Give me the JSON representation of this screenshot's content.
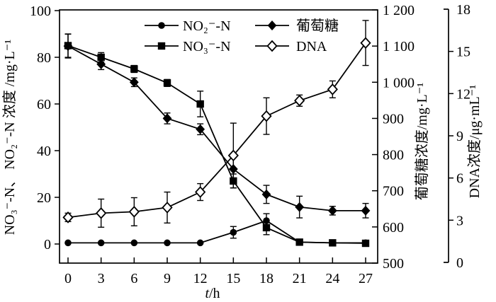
{
  "figure": {
    "background": "#ffffff",
    "foreground": "#000000"
  },
  "chart_data": {
    "type": "line",
    "title": "",
    "x": [
      0,
      3,
      6,
      9,
      12,
      15,
      18,
      21,
      24,
      27
    ],
    "xlabel": "t/h",
    "x_tick_labels": [
      "0",
      "3",
      "6",
      "9",
      "12",
      "15",
      "18",
      "21",
      "24",
      "27"
    ],
    "grid": false,
    "legend_position": "top-center",
    "axes": {
      "left": {
        "title": "NO₃⁻-N、 NO₂⁻-N 浓度 /mg·L⁻¹",
        "tick_labels": [
          "0",
          "20",
          "40",
          "60",
          "80",
          "100"
        ],
        "tick_values": [
          0,
          20,
          40,
          60,
          80,
          100
        ],
        "range": [
          0,
          100
        ]
      },
      "right_glucose": {
        "title": "葡萄糖浓度/mg·L⁻¹",
        "tick_labels": [
          "500",
          "600",
          "700",
          "800",
          "900",
          "1 000",
          "1 100",
          "1 200"
        ],
        "tick_values": [
          500,
          600,
          700,
          800,
          900,
          1000,
          1100,
          1200
        ],
        "range": [
          500,
          1200
        ]
      },
      "right_dna": {
        "title": "DNA浓度/μg·mL⁻¹",
        "tick_labels": [
          "0",
          "3",
          "6",
          "9",
          "12",
          "15",
          "18"
        ],
        "tick_values": [
          0,
          3,
          6,
          9,
          12,
          15,
          18
        ],
        "range": [
          0,
          18
        ]
      }
    },
    "series": [
      {
        "name": "NO₂⁻-N",
        "axis": "left",
        "marker": "filled-circle",
        "values": [
          0.5,
          0.5,
          0.5,
          0.5,
          0.5,
          5,
          10,
          0.8,
          0.5,
          0.5
        ],
        "errors": [
          0,
          0,
          0,
          0,
          0,
          2.5,
          3,
          0.5,
          0,
          0
        ]
      },
      {
        "name": "NO₃⁻-N",
        "axis": "left",
        "marker": "filled-square",
        "values": [
          85,
          80,
          75,
          69,
          60,
          27,
          7,
          0.8,
          0.5,
          0.3
        ],
        "errors": [
          5,
          2,
          1.5,
          1.5,
          5.5,
          3,
          3,
          0.5,
          0,
          0
        ]
      },
      {
        "name": "葡萄糖",
        "axis": "right_glucose",
        "marker": "filled-diamond",
        "values": [
          1100,
          1050,
          1000,
          900,
          870,
          760,
          690,
          655,
          645,
          645
        ],
        "errors": [
          33,
          15,
          12,
          15,
          15,
          35,
          25,
          30,
          12,
          20
        ]
      },
      {
        "name": "DNA",
        "axis": "right_dna",
        "marker": "open-diamond",
        "values": [
          3.2,
          3.5,
          3.6,
          3.9,
          5.0,
          7.6,
          10.4,
          11.5,
          12.3,
          15.6
        ],
        "errors": [
          0.3,
          1.0,
          1.0,
          1.1,
          0.6,
          2.3,
          1.3,
          0.4,
          0.6,
          1.6
        ]
      }
    ],
    "legend": {
      "rows": [
        [
          "NO₂⁻-N",
          "葡萄糖"
        ],
        [
          "NO₃⁻-N",
          "DNA"
        ]
      ]
    }
  }
}
